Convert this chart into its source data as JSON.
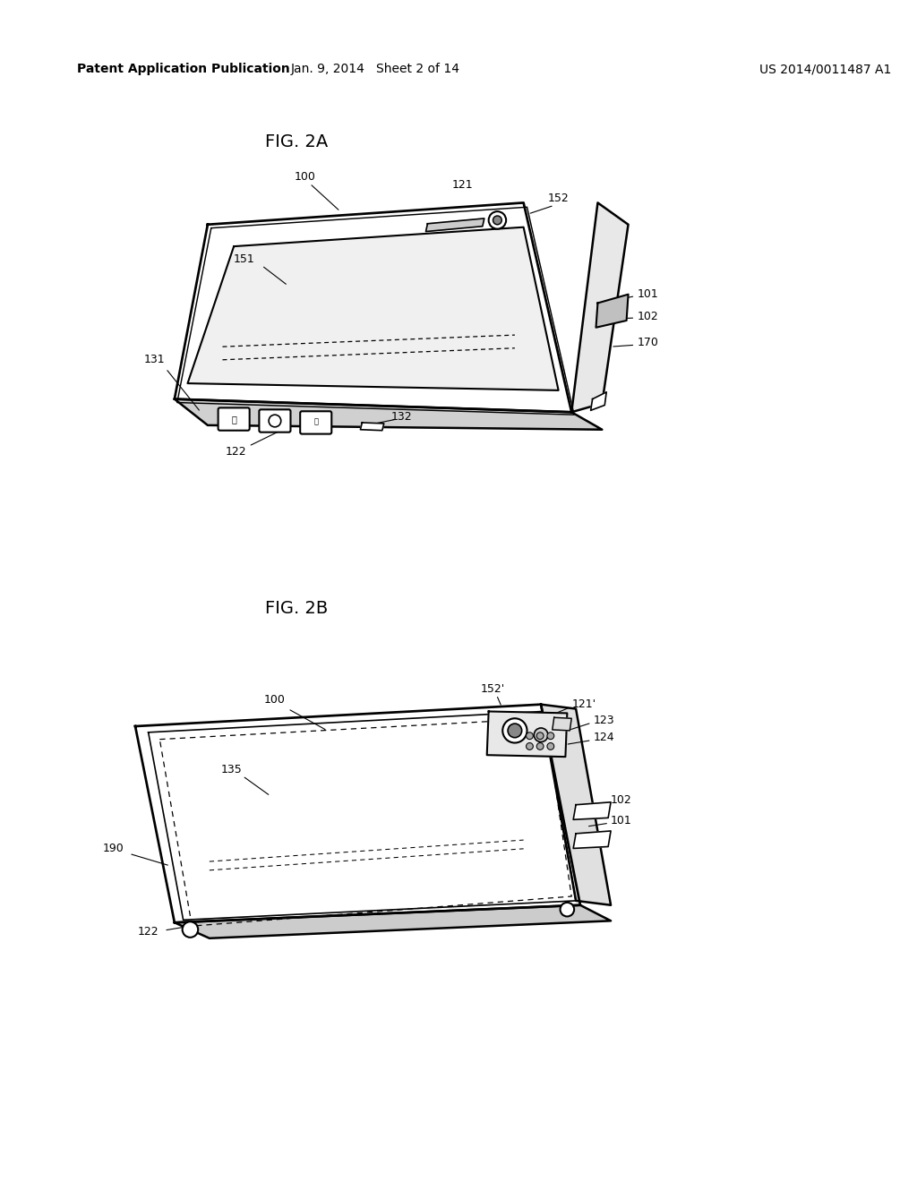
{
  "background_color": "#ffffff",
  "header_left": "Patent Application Publication",
  "header_center": "Jan. 9, 2014   Sheet 2 of 14",
  "header_right": "US 2014/0011487 A1",
  "fig2a_title": "FIG. 2A",
  "fig2b_title": "FIG. 2B",
  "line_color": "#000000",
  "line_width": 1.5,
  "font_size_header": 10,
  "font_size_title": 13,
  "font_size_label": 9
}
